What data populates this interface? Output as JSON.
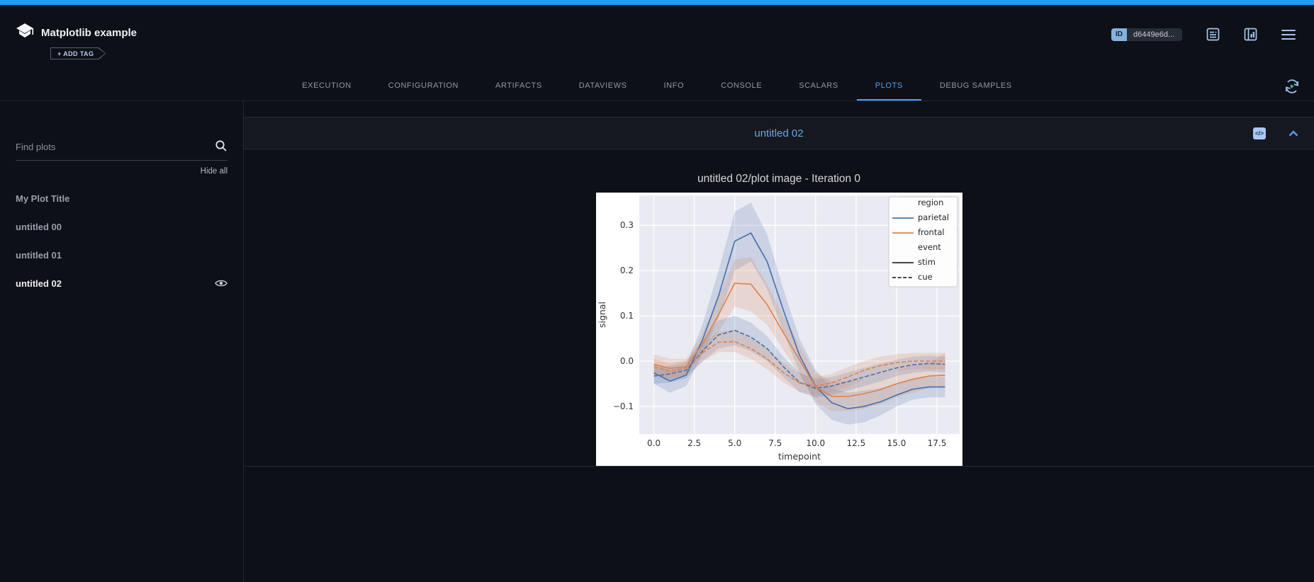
{
  "status_bar": {
    "status": "COMPLETED"
  },
  "header": {
    "title": "Matplotlib example",
    "add_tag_label": "+ ADD TAG",
    "id_badge": {
      "label": "ID",
      "value": "d6449e6d..."
    },
    "action_icons": [
      "log-icon",
      "compare-panels-icon",
      "menu-icon"
    ]
  },
  "tabs": {
    "items": [
      "EXECUTION",
      "CONFIGURATION",
      "ARTIFACTS",
      "DATAVIEWS",
      "INFO",
      "CONSOLE",
      "SCALARS",
      "PLOTS",
      "DEBUG SAMPLES"
    ],
    "active": "PLOTS"
  },
  "sidebar": {
    "search_placeholder": "Find plots",
    "search_icon": "magnifier",
    "hide_all_label": "Hide all",
    "items": [
      {
        "label": "My Plot Title",
        "selected": false,
        "eye_visible": false
      },
      {
        "label": "untitled 00",
        "selected": false,
        "eye_visible": false
      },
      {
        "label": "untitled 01",
        "selected": false,
        "eye_visible": false
      },
      {
        "label": "untitled 02",
        "selected": true,
        "eye_visible": true
      }
    ]
  },
  "plot_section": {
    "title": "untitled 02",
    "code_icon": "embed-code",
    "collapse_icon": "chevron-up"
  },
  "colors": {
    "accent_blue": "#1e9df2",
    "tab_active": "#4ea1f7",
    "seaborn_blue": "#4c72b0",
    "seaborn_orange": "#dd8452",
    "figure_bg": "#ffffff",
    "axes_bg": "#eaeaf2"
  },
  "chart_data": {
    "type": "line",
    "title": "untitled 02/plot image - Iteration 0",
    "xlabel": "timepoint",
    "ylabel": "signal",
    "grid": true,
    "legend_position": "upper right",
    "x": [
      0,
      1,
      2,
      3,
      4,
      5,
      6,
      7,
      8,
      9,
      10,
      11,
      12,
      13,
      14,
      15,
      16,
      17,
      18
    ],
    "xlim": [
      -0.9,
      18.9
    ],
    "ylim": [
      -0.161,
      0.366
    ],
    "xticks": [
      0,
      2.5,
      5,
      7.5,
      10,
      12.5,
      15,
      17.5
    ],
    "xtick_labels": [
      "0.0",
      "2.5",
      "5.0",
      "7.5",
      "10.0",
      "12.5",
      "15.0",
      "17.5"
    ],
    "yticks": [
      -0.1,
      0,
      0.1,
      0.2,
      0.3
    ],
    "ytick_labels": [
      "−0.1",
      "0.0",
      "0.1",
      "0.2",
      "0.3"
    ],
    "legend": [
      {
        "label": "region",
        "type": "title"
      },
      {
        "label": "parietal",
        "type": "line",
        "color": "#4c72b0",
        "dash": "solid"
      },
      {
        "label": "frontal",
        "type": "line",
        "color": "#dd8452",
        "dash": "solid"
      },
      {
        "label": "event",
        "type": "title"
      },
      {
        "label": "stim",
        "type": "line",
        "color": "#2b2b2b",
        "dash": "solid"
      },
      {
        "label": "cue",
        "type": "line",
        "color": "#2b2b2b",
        "dash": "dashed"
      }
    ],
    "series": [
      {
        "name": "parietal-stim",
        "color": "#4c72b0",
        "dash": "solid",
        "values": [
          -0.026,
          -0.044,
          -0.031,
          0.046,
          0.144,
          0.265,
          0.283,
          0.22,
          0.113,
          0.013,
          -0.056,
          -0.092,
          -0.105,
          -0.1,
          -0.09,
          -0.075,
          -0.062,
          -0.057,
          -0.057
        ],
        "ci_upper": [
          -0.005,
          -0.02,
          -0.01,
          0.08,
          0.2,
          0.33,
          0.35,
          0.28,
          0.16,
          0.05,
          -0.02,
          -0.06,
          -0.07,
          -0.065,
          -0.06,
          -0.05,
          -0.04,
          -0.035,
          -0.035
        ],
        "ci_lower": [
          -0.05,
          -0.07,
          -0.055,
          0.015,
          0.095,
          0.2,
          0.22,
          0.16,
          0.065,
          -0.025,
          -0.095,
          -0.13,
          -0.14,
          -0.135,
          -0.12,
          -0.1,
          -0.085,
          -0.08,
          -0.08
        ]
      },
      {
        "name": "frontal-stim",
        "color": "#dd8452",
        "dash": "solid",
        "values": [
          -0.007,
          -0.016,
          -0.012,
          0.037,
          0.103,
          0.172,
          0.17,
          0.125,
          0.063,
          0.003,
          -0.057,
          -0.078,
          -0.078,
          -0.072,
          -0.063,
          -0.05,
          -0.04,
          -0.033,
          -0.031
        ],
        "ci_upper": [
          0.015,
          0.005,
          0.005,
          0.06,
          0.14,
          0.225,
          0.23,
          0.17,
          0.1,
          0.035,
          -0.025,
          -0.045,
          -0.045,
          -0.04,
          -0.03,
          -0.02,
          -0.01,
          -0.005,
          0.018
        ],
        "ci_lower": [
          -0.03,
          -0.04,
          -0.03,
          0.015,
          0.065,
          0.12,
          0.11,
          0.08,
          0.025,
          -0.03,
          -0.09,
          -0.11,
          -0.11,
          -0.105,
          -0.095,
          -0.08,
          -0.07,
          -0.06,
          -0.055
        ]
      },
      {
        "name": "parietal-cue",
        "color": "#4c72b0",
        "dash": "dashed",
        "values": [
          -0.033,
          -0.028,
          -0.02,
          0.022,
          0.058,
          0.068,
          0.053,
          0.028,
          -0.012,
          -0.047,
          -0.06,
          -0.055,
          -0.045,
          -0.035,
          -0.025,
          -0.015,
          -0.008,
          -0.005,
          -0.007
        ],
        "ci_upper": [
          -0.015,
          -0.01,
          -0.002,
          0.045,
          0.09,
          0.1,
          0.085,
          0.055,
          0.01,
          -0.025,
          -0.04,
          -0.035,
          -0.025,
          -0.015,
          -0.005,
          0.003,
          0.01,
          0.012,
          0.01
        ],
        "ci_lower": [
          -0.05,
          -0.047,
          -0.038,
          0.0,
          0.028,
          0.035,
          0.022,
          0.0,
          -0.035,
          -0.068,
          -0.08,
          -0.075,
          -0.065,
          -0.055,
          -0.045,
          -0.033,
          -0.026,
          -0.022,
          -0.025
        ]
      },
      {
        "name": "frontal-cue",
        "color": "#dd8452",
        "dash": "dashed",
        "values": [
          -0.012,
          -0.022,
          -0.015,
          0.018,
          0.042,
          0.043,
          0.028,
          0.005,
          -0.025,
          -0.048,
          -0.055,
          -0.048,
          -0.035,
          -0.02,
          -0.01,
          -0.003,
          0.0,
          0.0,
          0.0
        ],
        "ci_upper": [
          0.005,
          -0.005,
          0.002,
          0.038,
          0.065,
          0.068,
          0.05,
          0.028,
          -0.003,
          -0.028,
          -0.035,
          -0.028,
          -0.013,
          0.0,
          0.01,
          0.015,
          0.018,
          0.018,
          0.018
        ],
        "ci_lower": [
          -0.03,
          -0.04,
          -0.032,
          -0.002,
          0.02,
          0.02,
          0.005,
          -0.018,
          -0.047,
          -0.068,
          -0.075,
          -0.068,
          -0.057,
          -0.04,
          -0.03,
          -0.021,
          -0.018,
          -0.018,
          -0.018
        ]
      }
    ]
  }
}
